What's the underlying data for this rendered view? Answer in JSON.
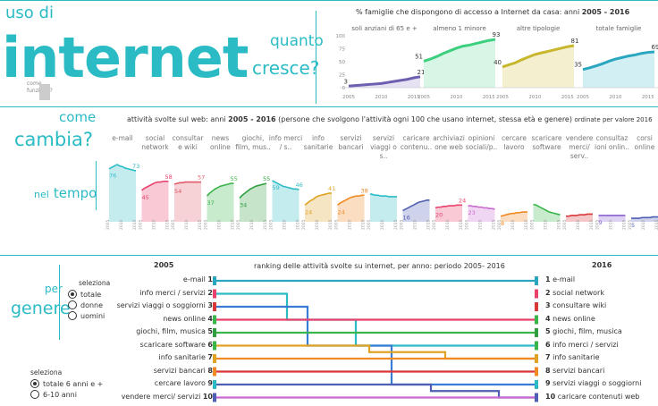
{
  "section1": {
    "uso_di": "uso di",
    "internet": "internet",
    "come_funziona": "come\nfunziona?",
    "quanto": "quanto",
    "cresce": "cresce?",
    "title": "% famiglie che dispongono di accesso a Internet da casa: anni",
    "title_years": "2005 - 2016"
  },
  "section2": {
    "come": "come",
    "cambia": "cambia?",
    "nel": "nel",
    "tempo": "tempo",
    "title_pre": "attività svolte sul web: anni",
    "title_years": "2005 - 2016",
    "title_post": "(persone che svolgono l'attività ogni 100 che usano internet, stessa età e genere)",
    "order_note": "ordinate per valore 2016"
  },
  "section3": {
    "per": "per",
    "genere": "genere",
    "seleziona": "seleziona",
    "gender_options": [
      "totale",
      "donne",
      "uomini"
    ],
    "age_seleziona": "seleziona",
    "age_options": [
      "totale 6 anni e +",
      "6-10 anni"
    ],
    "title": "ranking delle attività svolte su internet, per anno: periodo 2005- 2016",
    "year_left": "2005",
    "year_right": "2016"
  },
  "colors": {
    "accent": "#2bbbc5",
    "anziani": "#6f5fb0",
    "minore": "#3ccf7e",
    "altre": "#c8b72d",
    "totale": "#2aa6c1"
  },
  "chart_data": [
    {
      "type": "area",
      "title": "% famiglie che dispongono di accesso a Internet da casa: anni 2005 - 2016",
      "ylim": [
        0,
        100
      ],
      "yticks": [
        "100",
        "75",
        "50",
        "25",
        "0"
      ],
      "xticks": [
        "2005",
        "2010",
        "2015"
      ],
      "series": [
        {
          "name": "soli anziani di 65 e +",
          "start_label": "3",
          "end_label": "21",
          "x": [
            2005,
            2006,
            2007,
            2008,
            2009,
            2010,
            2011,
            2012,
            2013,
            2014,
            2015,
            2016
          ],
          "values": [
            3,
            4,
            5,
            6,
            7,
            8,
            10,
            12,
            14,
            16,
            19,
            21
          ]
        },
        {
          "name": "almeno 1 minore",
          "start_label": "51",
          "end_label": "93",
          "x": [
            2005,
            2006,
            2007,
            2008,
            2009,
            2010,
            2011,
            2012,
            2013,
            2014,
            2015,
            2016
          ],
          "values": [
            51,
            55,
            60,
            66,
            71,
            76,
            80,
            82,
            85,
            88,
            91,
            93
          ]
        },
        {
          "name": "altre tipologie",
          "start_label": "40",
          "end_label": "81",
          "x": [
            2005,
            2006,
            2007,
            2008,
            2009,
            2010,
            2011,
            2012,
            2013,
            2014,
            2015,
            2016
          ],
          "values": [
            40,
            44,
            48,
            54,
            59,
            64,
            67,
            70,
            73,
            76,
            79,
            81
          ]
        },
        {
          "name": "totale famiglie",
          "start_label": "35",
          "end_label": "69",
          "x": [
            2005,
            2006,
            2007,
            2008,
            2009,
            2010,
            2011,
            2012,
            2013,
            2014,
            2015,
            2016
          ],
          "values": [
            35,
            38,
            42,
            46,
            51,
            55,
            58,
            61,
            63,
            66,
            68,
            69
          ]
        }
      ]
    },
    {
      "type": "area",
      "title": "attività svolte sul web: anni 2005 - 2016",
      "xticks": [
        "2005",
        "2010",
        "2015"
      ],
      "categories": [
        "e-mail",
        "social network",
        "consultar e wiki",
        "news online",
        "giochi, film, mus..",
        "info merci / s..",
        "info sanitarie",
        "servizi bancari",
        "servizi viaggi o s..",
        "caricare contenu..",
        "archiviazi one web",
        "opinioni sociali/p..",
        "cercare lavoro",
        "scaricare software",
        "vendere merci/ serv..",
        "consultaz ioni onlin..",
        "corsi online"
      ],
      "labels": [
        [
          "76",
          "73"
        ],
        [
          "45",
          "58"
        ],
        [
          "54",
          "57"
        ],
        [
          "37",
          "55"
        ],
        [
          "34",
          "55"
        ],
        [
          "59",
          "46"
        ],
        [
          "24",
          "41"
        ],
        [
          "24",
          "38"
        ],
        [
          "",
          ""
        ],
        [
          "16",
          ""
        ],
        [
          "20",
          "24"
        ],
        [
          "23",
          ""
        ],
        [
          "8",
          ""
        ],
        [
          "",
          ""
        ],
        [
          "",
          ""
        ],
        [
          "9",
          ""
        ],
        [
          "5",
          ""
        ]
      ],
      "values": [
        [
          76,
          78,
          80,
          82,
          80,
          79,
          77,
          76,
          75,
          74,
          73
        ],
        [
          45,
          48,
          50,
          52,
          54,
          56,
          57,
          57,
          58,
          58,
          58
        ],
        [
          54,
          55,
          56,
          56,
          57,
          57,
          57,
          57,
          57,
          57,
          57
        ],
        [
          37,
          41,
          44,
          47,
          49,
          51,
          52,
          53,
          54,
          55,
          55
        ],
        [
          34,
          38,
          41,
          44,
          47,
          49,
          51,
          52,
          53,
          54,
          55
        ],
        [
          59,
          57,
          55,
          53,
          51,
          50,
          49,
          48,
          47,
          47,
          46
        ],
        [
          24,
          27,
          30,
          32,
          35,
          37,
          38,
          39,
          40,
          41,
          41
        ],
        [
          24,
          27,
          29,
          31,
          33,
          35,
          36,
          37,
          37,
          38,
          38
        ],
        [
          40,
          39,
          38,
          38,
          37,
          37,
          37,
          36,
          36,
          36,
          36
        ],
        [
          16,
          18,
          20,
          22,
          24,
          26,
          28,
          29,
          30,
          31,
          31
        ],
        [
          20,
          21,
          21,
          22,
          22,
          23,
          23,
          23,
          24,
          24,
          24
        ],
        [
          23,
          23,
          22,
          22,
          21,
          21,
          20,
          20,
          19,
          19,
          18
        ],
        [
          8,
          9,
          10,
          11,
          12,
          12,
          13,
          13,
          14,
          14,
          14
        ],
        [
          25,
          24,
          22,
          20,
          18,
          16,
          14,
          13,
          12,
          11,
          10
        ],
        [
          8,
          8,
          9,
          9,
          9,
          10,
          10,
          10,
          11,
          11,
          11
        ],
        [
          9,
          9,
          9,
          9,
          9,
          9,
          9,
          9,
          9,
          9,
          9
        ],
        [
          5,
          5,
          5,
          5,
          6,
          6,
          6,
          6,
          7,
          7,
          7
        ]
      ]
    },
    {
      "type": "line",
      "title": "ranking delle attività svolte su internet, per anno: periodo 2005- 2016",
      "left": [
        {
          "rank": "1",
          "label": "e-mail"
        },
        {
          "rank": "2",
          "label": "info merci / servizi"
        },
        {
          "rank": "3",
          "label": "servizi viaggi o soggiorni"
        },
        {
          "rank": "4",
          "label": "news online"
        },
        {
          "rank": "5",
          "label": "giochi, film, musica"
        },
        {
          "rank": "6",
          "label": "scaricare software"
        },
        {
          "rank": "7",
          "label": "info sanitarie"
        },
        {
          "rank": "8",
          "label": "servizi bancari"
        },
        {
          "rank": "9",
          "label": "cercare lavoro"
        },
        {
          "rank": "10",
          "label": "vendere merci/ servizi"
        }
      ],
      "right": [
        {
          "rank": "1",
          "label": "e-mail"
        },
        {
          "rank": "2",
          "label": "social network"
        },
        {
          "rank": "3",
          "label": "consultare wiki"
        },
        {
          "rank": "4",
          "label": "news online"
        },
        {
          "rank": "5",
          "label": "giochi, film, musica"
        },
        {
          "rank": "6",
          "label": "info merci / servizi"
        },
        {
          "rank": "7",
          "label": "info sanitarie"
        },
        {
          "rank": "8",
          "label": "servizi bancari"
        },
        {
          "rank": "9",
          "label": "servizi viaggi o soggiorni"
        },
        {
          "rank": "10",
          "label": "caricare contenuti web"
        }
      ],
      "rank_colors": [
        "#2aa6c1",
        "#e8416b",
        "#d93838",
        "#3ab54a",
        "#2e9e3f",
        "#3ab54a",
        "#e0a324",
        "#f08a24",
        "#2bbbc5",
        "#4f5fb3"
      ]
    }
  ]
}
